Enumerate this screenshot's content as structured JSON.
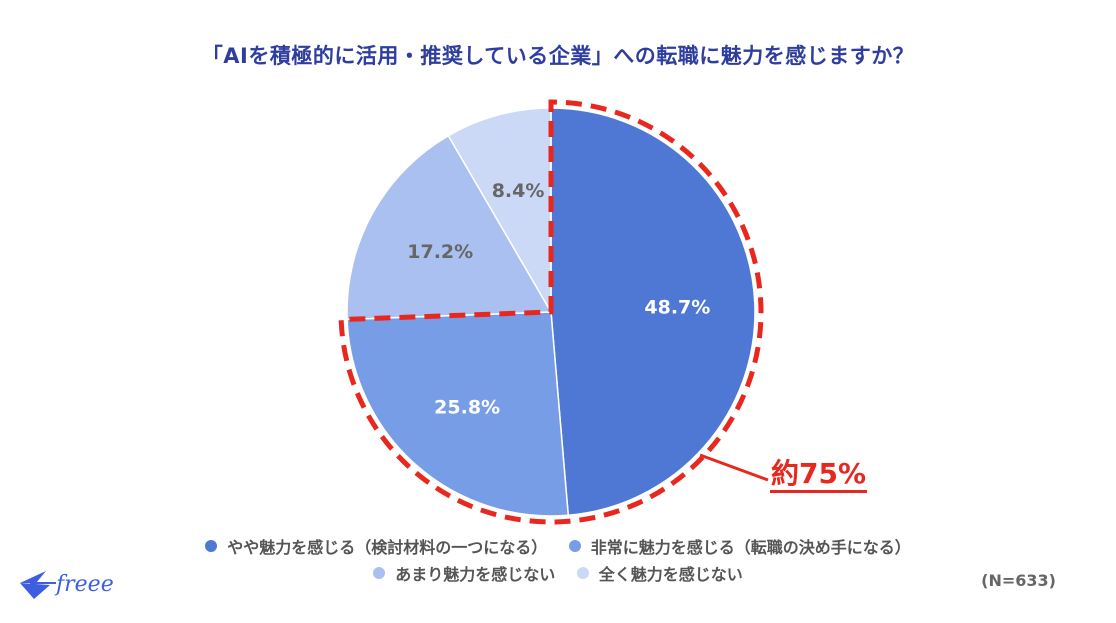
{
  "title": "「AIを積極的に活用・推奨している企業」への転職に魅力を感じますか？",
  "callout": "約75%",
  "sample_size": "(N=633)",
  "logo": {
    "text": "freee",
    "icon": "swallow-bird-icon"
  },
  "colors": {
    "title": "#2f3e9e",
    "highlight": "#e8281e",
    "slices": [
      "#4f78d4",
      "#789de7",
      "#aac0f0",
      "#cbd8f6"
    ]
  },
  "slices": [
    {
      "label": "やや魅力を感じる（検討材料の一つになる）",
      "value": 48.7,
      "text": "48.7%",
      "color": "#4f78d4",
      "text_color": "#ffffff"
    },
    {
      "label": "非常に魅力を感じる（転職の決め手になる）",
      "value": 25.8,
      "text": "25.8%",
      "color": "#789de7",
      "text_color": "#ffffff"
    },
    {
      "label": "あまり魅力を感じない",
      "value": 17.2,
      "text": "17.2%",
      "color": "#aac0f0",
      "text_color": "#666666"
    },
    {
      "label": "全く魅力を感じない",
      "value": 8.4,
      "text": "8.4%",
      "color": "#cbd8f6",
      "text_color": "#666666"
    }
  ],
  "chart_data": {
    "type": "pie",
    "title": "「AIを積極的に活用・推奨している企業」への転職に魅力を感じますか？",
    "categories": [
      "やや魅力を感じる（検討材料の一つになる）",
      "非常に魅力を感じる（転職の決め手になる）",
      "あまり魅力を感じない",
      "全く魅力を感じない"
    ],
    "values": [
      48.7,
      25.8,
      17.2,
      8.4
    ],
    "unit": "%",
    "start_angle": "12 o'clock, clockwise",
    "legend_position": "bottom",
    "annotations": [
      {
        "text": "約75%",
        "target": [
          "やや魅力を感じる（検討材料の一つになる）",
          "非常に魅力を感じる（転職の決め手になる）"
        ],
        "style": "red dashed outline"
      }
    ],
    "sample_size": "N=633"
  }
}
